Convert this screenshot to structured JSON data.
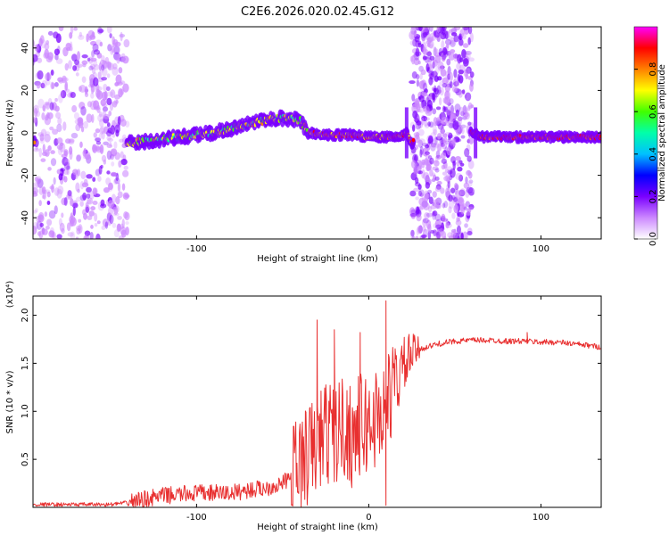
{
  "chart_data": [
    {
      "type": "heatmap",
      "title": "C2E6.2026.020.02.45.G12",
      "xlabel": "Height of straight line (km)",
      "ylabel": "Frequency (Hz)",
      "xlim": [
        -195,
        135
      ],
      "ylim": [
        -50,
        50
      ],
      "xticks": [
        "-100",
        "0",
        "100"
      ],
      "yticks": [
        "-40",
        "-20",
        "0",
        "20",
        "40"
      ],
      "colorbar": {
        "label": "Normalized spectral amplitude",
        "range": [
          0,
          1
        ],
        "ticks": [
          "0.0",
          "0.2",
          "0.4",
          "0.6",
          "0.8"
        ],
        "colors": [
          "#ffffff",
          "#cc88ff",
          "#7a00ff",
          "#0000ff",
          "#00c0ff",
          "#00ffaa",
          "#40ff00",
          "#ffff00",
          "#ff8000",
          "#ff0000",
          "#ff00ff"
        ]
      },
      "ridge": {
        "x": [
          -195,
          -170,
          -150,
          -130,
          -110,
          -90,
          -75,
          -60,
          -50,
          -40,
          -35,
          -25,
          -10,
          0,
          10,
          20,
          22,
          25,
          30,
          62,
          64,
          70,
          80,
          100,
          120,
          135
        ],
        "y": [
          -4,
          -6,
          -5,
          -4,
          -2,
          0,
          3,
          6,
          7,
          6,
          0,
          -1,
          -1,
          -2,
          -2,
          -1,
          0,
          -5,
          0,
          0,
          -2,
          -2,
          -2,
          -2,
          -2,
          -2
        ]
      },
      "noise_bands_x": [
        [
          -195,
          -140
        ],
        [
          25,
          60
        ]
      ]
    },
    {
      "type": "line",
      "xlabel": "Height of straight line (km)",
      "ylabel": "SNR (10 * v/v)",
      "y_multiplier": "(x10⁴)",
      "xlim": [
        -195,
        135
      ],
      "ylim": [
        0,
        2.2
      ],
      "xticks": [
        "-100",
        "0",
        "100"
      ],
      "yticks": [
        "0.5",
        "1.0",
        "1.5",
        "2.0"
      ],
      "color": "#e83030",
      "series": [
        {
          "x": [
            -195,
            -150,
            -140,
            -120,
            -100,
            -80,
            -70,
            -60,
            -50,
            -45,
            -40,
            -35,
            -30,
            -25,
            -20,
            -15,
            -10,
            -5,
            0,
            5,
            10,
            15,
            20,
            25,
            30,
            40,
            50,
            60,
            70,
            80,
            90,
            100,
            110,
            120,
            135
          ],
          "y": [
            0.03,
            0.03,
            0.05,
            0.12,
            0.15,
            0.15,
            0.18,
            0.2,
            0.25,
            0.32,
            0.45,
            0.55,
            0.65,
            0.8,
            0.75,
            0.85,
            0.75,
            0.85,
            0.85,
            0.95,
            1.05,
            1.3,
            1.45,
            1.6,
            1.65,
            1.7,
            1.73,
            1.74,
            1.74,
            1.73,
            1.73,
            1.72,
            1.72,
            1.7,
            1.67
          ]
        }
      ],
      "spikes": [
        {
          "x": -30,
          "y": 1.95
        },
        {
          "x": -20,
          "y": 1.85
        },
        {
          "x": -5,
          "y": 1.82
        },
        {
          "x": 10,
          "y": 2.15
        },
        {
          "x": 10,
          "y": 0.02
        },
        {
          "x": 92,
          "y": 1.82
        }
      ]
    }
  ]
}
